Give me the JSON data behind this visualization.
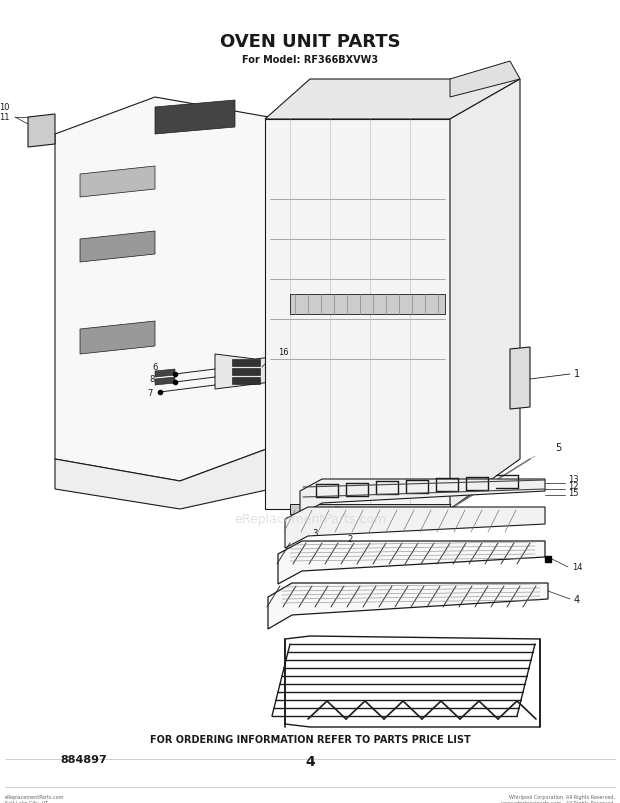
{
  "title": "OVEN UNIT PARTS",
  "subtitle": "For Model: RF366BXVW3",
  "bottom_text": "FOR ORDERING INFORMATION REFER TO PARTS PRICE LIST",
  "part_number": "884897",
  "page_number": "4",
  "bg_color": "#ffffff",
  "lc": "#1a1a1a",
  "watermark": "eReplacementParts.com",
  "copyright_left": "eReplacementParts.com\nSalt Lake City, UT",
  "copyright_right": "Whirlpool Corporation. All Rights Reserved.\nwww.whirlpoolparts.com - All Rights Reserved."
}
